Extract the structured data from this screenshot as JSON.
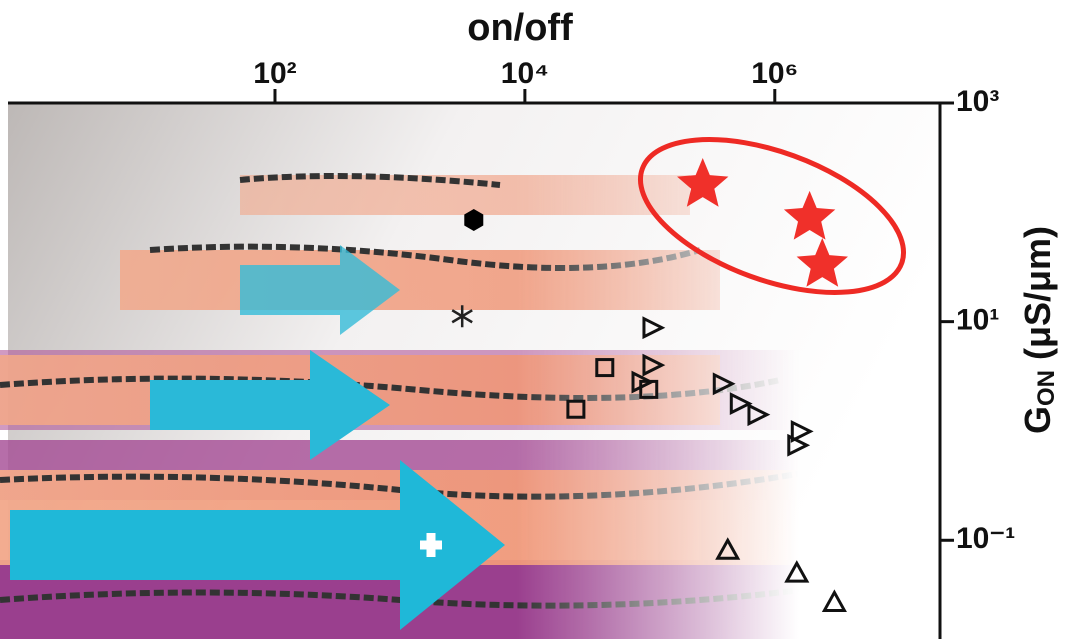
{
  "chart_data": {
    "type": "scatter",
    "xlabel": "on/off",
    "ylabel": [
      "G",
      "ON",
      "(μS/μm)"
    ],
    "xscale": "log",
    "yscale": "log",
    "xlim": [
      0.73,
      21000000
    ],
    "ylim": [
      0.0125,
      1000
    ],
    "xticks": [
      {
        "value": 100,
        "label": "10²"
      },
      {
        "value": 10000,
        "label": "10⁴"
      },
      {
        "value": 1000000,
        "label": "10⁶"
      }
    ],
    "yticks": [
      {
        "value": 1000,
        "label": "10³"
      },
      {
        "value": 10,
        "label": "10¹"
      },
      {
        "value": 0.1,
        "label": "10⁻¹"
      }
    ],
    "series": [
      {
        "marker": "star",
        "color": "#f0302a",
        "x": [
          265000,
          1900000,
          2400000
        ],
        "values": [
          178,
          89,
          33
        ]
      },
      {
        "marker": "hexagon",
        "color": "#000000",
        "x": [
          3900
        ],
        "values": [
          85
        ]
      },
      {
        "marker": "asterisk",
        "color": "#222222",
        "x": [
          3150
        ],
        "values": [
          11.2
        ]
      },
      {
        "marker": "square",
        "color": "#111111",
        "x": [
          43600,
          98000,
          25600
        ],
        "values": [
          3.8,
          2.4,
          1.58
        ]
      },
      {
        "marker": "triangle-right",
        "color": "#111111",
        "x": [
          104000,
          104000,
          85000,
          380000,
          520000,
          720000,
          1600000,
          1500000
        ],
        "values": [
          8.8,
          4.0,
          2.8,
          2.7,
          1.78,
          1.41,
          0.99,
          0.74
        ]
      },
      {
        "marker": "triangle-up",
        "color": "#111111",
        "x": [
          420000,
          1500000,
          3000000
        ],
        "values": [
          0.081,
          0.05,
          0.027
        ]
      }
    ]
  }
}
